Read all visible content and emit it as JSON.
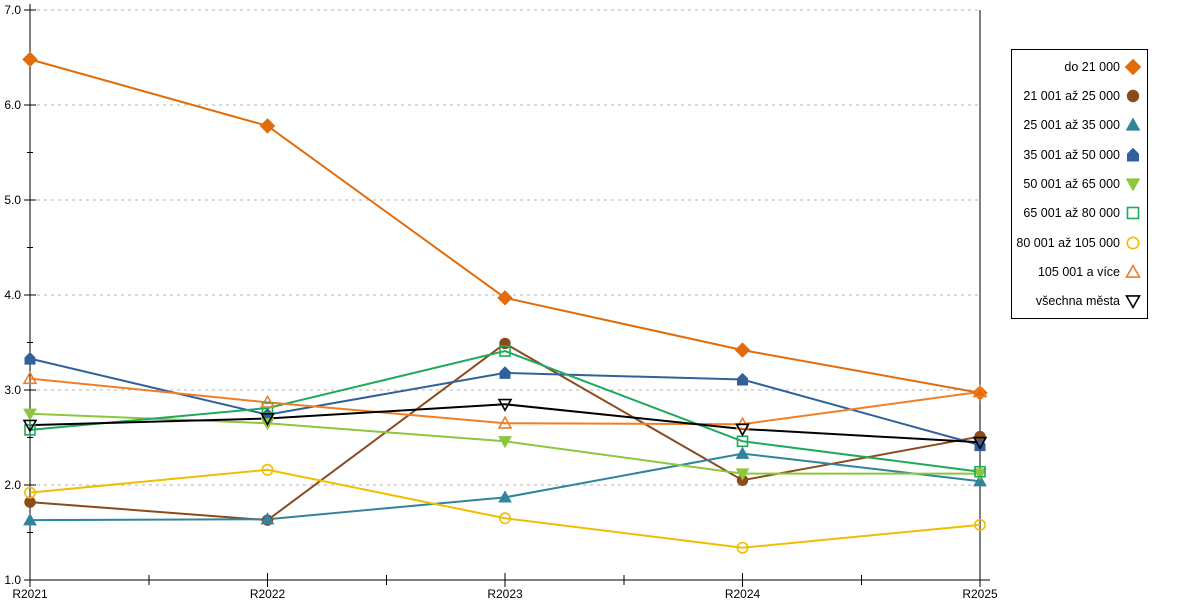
{
  "chart_data": {
    "type": "line",
    "title": "",
    "xlabel": "",
    "ylabel": "",
    "x_labels": [
      "R2021",
      "R2022",
      "R2023",
      "R2024",
      "R2025"
    ],
    "ylim": [
      1.0,
      7.0
    ],
    "y_tick_labels": [
      "1.0",
      "2.0",
      "3.0",
      "4.0",
      "5.0",
      "6.0",
      "7.0"
    ],
    "grid": "horizontal-dashed",
    "legend_position": "right-box",
    "axis_color": "#000000",
    "grid_color": "#B3B3B3",
    "background": "#FFFFFF",
    "series": [
      {
        "name": "do 21 000",
        "marker": "diamond",
        "style": "filled",
        "color": "#E36C0A",
        "values": [
          6.48,
          5.78,
          3.97,
          3.42,
          2.97
        ]
      },
      {
        "name": "21 001 až 25 000",
        "marker": "circle",
        "style": "filled",
        "color": "#8C4B1C",
        "values": [
          1.82,
          1.63,
          3.49,
          2.05,
          2.51
        ]
      },
      {
        "name": "25 001 až 35 000",
        "marker": "triangle-up",
        "style": "filled",
        "color": "#31849B",
        "values": [
          1.63,
          1.64,
          1.87,
          2.33,
          2.04
        ]
      },
      {
        "name": "35 001 až 50 000",
        "marker": "pentagon",
        "style": "filled",
        "color": "#31609C",
        "values": [
          3.33,
          2.74,
          3.18,
          3.11,
          2.42
        ]
      },
      {
        "name": "50 001 až 65 000",
        "marker": "triangle-down",
        "style": "filled",
        "color": "#8DC63F",
        "values": [
          2.75,
          2.65,
          2.46,
          2.12,
          2.12
        ]
      },
      {
        "name": "65 001 až 80 000",
        "marker": "square",
        "style": "open",
        "color": "#1FA95B",
        "values": [
          2.58,
          2.81,
          3.41,
          2.46,
          2.14
        ]
      },
      {
        "name": "80 001 až 105 000",
        "marker": "circle",
        "style": "open",
        "color": "#F0BE00",
        "values": [
          1.92,
          2.16,
          1.65,
          1.34,
          1.58
        ]
      },
      {
        "name": "105 001 a více",
        "marker": "triangle-up",
        "style": "open",
        "color": "#F07E26",
        "values": [
          3.12,
          2.87,
          2.65,
          2.64,
          2.98
        ]
      },
      {
        "name": "všechna města",
        "marker": "triangle-down",
        "style": "open",
        "color": "#000000",
        "values": [
          2.63,
          2.7,
          2.85,
          2.59,
          2.45
        ]
      }
    ]
  }
}
